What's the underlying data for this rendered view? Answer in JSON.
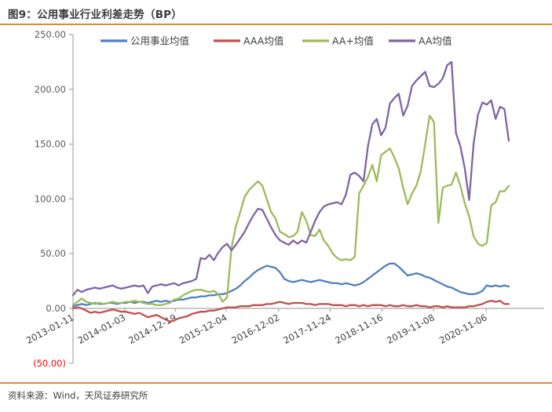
{
  "header": {
    "title": "图9：公用事业行业利差走势（BP）"
  },
  "footer": {
    "source": "资料来源：Wind，天风证券研究所"
  },
  "theme": {
    "accent": "#dc8a3c",
    "axis_color": "#a6a6a6",
    "tick_label_color": "#595959",
    "legend_text_color": "#404040",
    "negative_label_color": "#ff0000",
    "background": "#ffffff"
  },
  "chart_data": {
    "type": "line",
    "title": "图9：公用事业行业利差走势（BP）",
    "xlabel": "",
    "ylabel": "",
    "ylim": [
      -50,
      250
    ],
    "grid": false,
    "legend_position": "top",
    "x_interval": "monthly",
    "x_start": "2013-01",
    "x_end": "2021-04",
    "y_ticks": [
      {
        "v": 250,
        "label": "250.00",
        "negative": false
      },
      {
        "v": 200,
        "label": "200.00",
        "negative": false
      },
      {
        "v": 150,
        "label": "150.00",
        "negative": false
      },
      {
        "v": 100,
        "label": "100.00",
        "negative": false
      },
      {
        "v": 50,
        "label": "50.00",
        "negative": false
      },
      {
        "v": 0,
        "label": "0.00",
        "negative": false
      },
      {
        "v": -50,
        "label": "(50.00)",
        "negative": true
      }
    ],
    "x_ticks": [
      {
        "label": "2013-01-11",
        "m": 0
      },
      {
        "label": "2014-01-03",
        "m": 11.73
      },
      {
        "label": "2014-12-19",
        "m": 23.27
      },
      {
        "label": "2015-12-04",
        "m": 34.77
      },
      {
        "label": "2016-12-02",
        "m": 46.7
      },
      {
        "label": "2017-11-24",
        "m": 58.43
      },
      {
        "label": "2018-11-16",
        "m": 70.2
      },
      {
        "label": "2019-11-08",
        "m": 81.93
      },
      {
        "label": "2020-11-06",
        "m": 93.87
      }
    ],
    "series": [
      {
        "key": "utility",
        "name": "公用事业均值",
        "color": "#4f81bd",
        "values": [
          2,
          3,
          4,
          3,
          4,
          5,
          4,
          4,
          5,
          5,
          4,
          5,
          5,
          6,
          5,
          6,
          6,
          5,
          6,
          7,
          6,
          7,
          6,
          7,
          8,
          8,
          9,
          10,
          10,
          11,
          11,
          12,
          12,
          13,
          13,
          14,
          16,
          18,
          21,
          25,
          28,
          32,
          35,
          37,
          39,
          38,
          37,
          33,
          27,
          25,
          24,
          25,
          26,
          25,
          24,
          25,
          26,
          25,
          24,
          23,
          23,
          22,
          23,
          22,
          21,
          22,
          24,
          27,
          30,
          33,
          36,
          39,
          41,
          41,
          38,
          34,
          30,
          31,
          32,
          31,
          29,
          28,
          26,
          24,
          22,
          20,
          19,
          17,
          15,
          14,
          13,
          13,
          14,
          16,
          21,
          20,
          21,
          20,
          21,
          20
        ]
      },
      {
        "key": "aaa",
        "name": "AAA均值",
        "color": "#c0504d",
        "values": [
          0,
          1,
          0,
          -2,
          -4,
          -3,
          -4,
          -3,
          -2,
          -1,
          -2,
          -3,
          -3,
          -4,
          -5,
          -4,
          -6,
          -8,
          -7,
          -6,
          -8,
          -10,
          -12,
          -11,
          -9,
          -8,
          -7,
          -5,
          -4,
          -3,
          -3,
          -2,
          -2,
          -1,
          0,
          1,
          1,
          1,
          2,
          2,
          2,
          3,
          3,
          3,
          4,
          4,
          5,
          6,
          5,
          4,
          5,
          5,
          5,
          4,
          4,
          3,
          4,
          4,
          4,
          3,
          3,
          3,
          2,
          3,
          3,
          2,
          3,
          2,
          3,
          3,
          3,
          2,
          3,
          2,
          2,
          3,
          2,
          2,
          3,
          2,
          2,
          1,
          2,
          2,
          1,
          2,
          1,
          1,
          1,
          1,
          2,
          2,
          3,
          4,
          6,
          7,
          6,
          7,
          4,
          4
        ]
      },
      {
        "key": "aa-plus",
        "name": "AA+均值",
        "color": "#9bbb59",
        "values": [
          3,
          6,
          9,
          6,
          5,
          4,
          5,
          4,
          5,
          6,
          5,
          5,
          6,
          6,
          7,
          6,
          5,
          4,
          4,
          3,
          3,
          4,
          5,
          8,
          9,
          12,
          14,
          16,
          17,
          17,
          16,
          15,
          16,
          13,
          6,
          10,
          55,
          75,
          88,
          102,
          108,
          112,
          116,
          112,
          100,
          88,
          82,
          70,
          68,
          65,
          66,
          70,
          88,
          80,
          67,
          66,
          72,
          62,
          57,
          50,
          46,
          44,
          45,
          44,
          47,
          105,
          112,
          120,
          131,
          116,
          140,
          143,
          146,
          138,
          128,
          110,
          95,
          105,
          112,
          125,
          150,
          176,
          170,
          78,
          110,
          112,
          113,
          124,
          112,
          96,
          84,
          66,
          59,
          57,
          60,
          94,
          97,
          107,
          107,
          112
        ]
      },
      {
        "key": "aa",
        "name": "AA均值",
        "color": "#8064a2",
        "values": [
          12,
          17,
          15,
          17,
          18,
          19,
          18,
          19,
          20,
          21,
          19,
          18,
          19,
          20,
          21,
          20,
          21,
          14,
          20,
          21,
          22,
          21,
          22,
          23,
          21,
          23,
          24,
          25,
          27,
          46,
          45,
          49,
          44,
          51,
          56,
          59,
          53,
          58,
          64,
          70,
          78,
          85,
          91,
          90,
          82,
          74,
          67,
          62,
          60,
          58,
          62,
          59,
          62,
          60,
          70,
          80,
          88,
          93,
          95,
          96,
          97,
          95,
          104,
          122,
          124,
          121,
          116,
          148,
          168,
          173,
          158,
          165,
          187,
          192,
          196,
          176,
          185,
          203,
          208,
          212,
          216,
          203,
          202,
          205,
          210,
          222,
          225,
          160,
          148,
          128,
          99,
          150,
          177,
          188,
          186,
          190,
          173,
          184,
          182,
          153
        ]
      }
    ]
  }
}
